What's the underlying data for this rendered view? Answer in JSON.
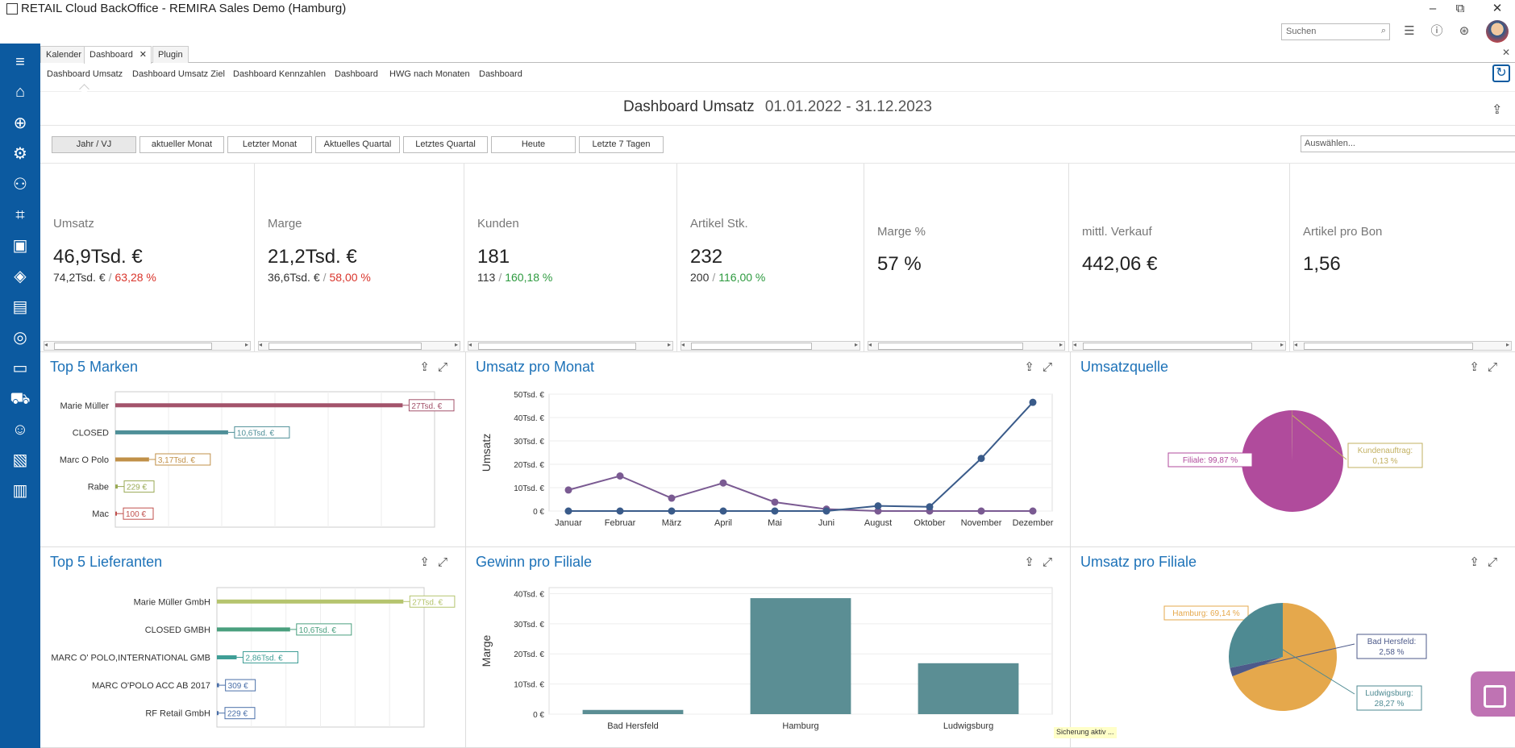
{
  "window": {
    "title": "RETAIL Cloud BackOffice - REMIRA Sales Demo (Hamburg)",
    "minimize": "–",
    "maximize": "⧉",
    "close": "✕"
  },
  "toolbar": {
    "search_placeholder": "Suchen"
  },
  "doc_tabs": [
    {
      "label": "Kalender"
    },
    {
      "label": "Dashboard",
      "active": true,
      "closable": true
    },
    {
      "label": "Plugin"
    }
  ],
  "sub_tabs": [
    {
      "label": "Dashboard Umsatz",
      "active": true
    },
    {
      "label": "Dashboard Umsatz Ziel"
    },
    {
      "label": "Dashboard Kennzahlen"
    },
    {
      "label": "Dashboard"
    },
    {
      "label": "HWG nach Monaten"
    },
    {
      "label": "Dashboard"
    }
  ],
  "dashboard": {
    "title": "Dashboard Umsatz",
    "range": "01.01.2022 - 31.12.2023"
  },
  "filters": {
    "buttons": [
      "Jahr / VJ",
      "aktueller Monat",
      "Letzter Monat",
      "Aktuelles Quartal",
      "Letztes Quartal",
      "Heute",
      "Letzte 7 Tagen"
    ],
    "active_index": 0,
    "select_placeholder": "Auswählen..."
  },
  "kpis": [
    {
      "label": "Umsatz",
      "value": "46,9Tsd. €",
      "prev": "74,2Tsd. €",
      "pct": "63,28 %",
      "pct_color": "red"
    },
    {
      "label": "Marge",
      "value": "21,2Tsd. €",
      "prev": "36,6Tsd. €",
      "pct": "58,00 %",
      "pct_color": "red"
    },
    {
      "label": "Kunden",
      "value": "181",
      "prev": "113",
      "pct": "160,18 %",
      "pct_color": "green"
    },
    {
      "label": "Artikel Stk.",
      "value": "232",
      "prev": "200",
      "pct": "116,00 %",
      "pct_color": "green"
    },
    {
      "label": "Marge %",
      "value": "57 %"
    },
    {
      "label": "mittl. Verkauf",
      "value": "442,06 €"
    },
    {
      "label": "Artikel pro Bon",
      "value": "1,56"
    }
  ],
  "panels": {
    "top5_marken": "Top 5 Marken",
    "umsatz_pro_monat": "Umsatz pro Monat",
    "umsatzquelle": "Umsatzquelle",
    "top5_lieferanten": "Top 5 Lieferanten",
    "gewinn_pro_filiale": "Gewinn pro Filiale",
    "umsatz_pro_filiale": "Umsatz pro Filiale"
  },
  "status": {
    "backup": "Sicherung aktiv ..."
  },
  "colors": {
    "sidebar": "#0c5aa0",
    "accent": "#1d72b8",
    "kpi_red": "#d9342b",
    "kpi_green": "#2d9a3f"
  },
  "chart_data": [
    {
      "id": "top5_marken",
      "type": "bar",
      "orientation": "horizontal",
      "categories": [
        "Marie Müller",
        "CLOSED",
        "Marc O Polo",
        "Rabe",
        "Mac"
      ],
      "values": [
        27000,
        10600,
        3170,
        229,
        100
      ],
      "labels": [
        "27Tsd. €",
        "10,6Tsd. €",
        "3,17Tsd. €",
        "229 €",
        "100 €"
      ],
      "colors": [
        "#a3536b",
        "#4f8f98",
        "#c09048",
        "#9aaa55",
        "#c0504d"
      ],
      "xlim": [
        0,
        30000
      ]
    },
    {
      "id": "umsatz_pro_monat",
      "type": "line",
      "x": [
        "Januar",
        "Februar",
        "März",
        "April",
        "Mai",
        "Juni",
        "August",
        "Oktober",
        "November",
        "Dezember"
      ],
      "ylabel": "Umsatz",
      "yticks": [
        "0 €",
        "10Tsd. €",
        "20Tsd. €",
        "30Tsd. €",
        "40Tsd. €",
        "50Tsd. €"
      ],
      "ylim": [
        0,
        50000
      ],
      "series": [
        {
          "color": "#7a5a92",
          "values": [
            9000,
            15000,
            5500,
            12000,
            3800,
            800,
            0,
            0,
            0,
            0
          ]
        },
        {
          "color": "#3a5b8a",
          "values": [
            0,
            0,
            0,
            0,
            0,
            0,
            2200,
            1800,
            22500,
            46500
          ]
        }
      ]
    },
    {
      "id": "umsatzquelle",
      "type": "pie",
      "slices": [
        {
          "label": "Filiale: 99,87 %",
          "value": 99.87,
          "color": "#b04b9c"
        },
        {
          "label": "Kundenauftrag: 0,13 %",
          "value": 0.13,
          "color": "#c2b060"
        }
      ]
    },
    {
      "id": "top5_lieferanten",
      "type": "bar",
      "orientation": "horizontal",
      "categories": [
        "Marie Müller GmbH",
        "CLOSED GMBH",
        "MARC O' POLO,INTERNATIONAL GMB",
        "MARC O'POLO ACC AB 2017",
        "RF Retail GmbH"
      ],
      "values": [
        27000,
        10600,
        2860,
        309,
        229
      ],
      "labels": [
        "27Tsd. €",
        "10,6Tsd. €",
        "2,86Tsd. €",
        "309 €",
        "229 €"
      ],
      "colors": [
        "#b5c46e",
        "#4a9f7e",
        "#3f9e96",
        "#4a6fa8",
        "#4a6fa8"
      ],
      "xlim": [
        0,
        30000
      ]
    },
    {
      "id": "gewinn_pro_filiale",
      "type": "bar",
      "categories": [
        "Bad Hersfeld",
        "Hamburg",
        "Ludwigsburg"
      ],
      "values": [
        1400,
        38500,
        16900
      ],
      "ylabel": "Marge",
      "yticks": [
        "0 €",
        "10Tsd. €",
        "20Tsd. €",
        "30Tsd. €",
        "40Tsd. €"
      ],
      "ylim": [
        0,
        42000
      ],
      "color": "#5b8e94"
    },
    {
      "id": "umsatz_pro_filiale",
      "type": "pie",
      "slices": [
        {
          "label": "Hamburg: 69,14 %",
          "value": 69.14,
          "color": "#e5a84c"
        },
        {
          "label": "Bad Hersfeld: 2,58 %",
          "value": 2.58,
          "color": "#4d5a8a"
        },
        {
          "label": "Ludwigsburg: 28,27 %",
          "value": 28.27,
          "color": "#4e8a92"
        }
      ]
    }
  ]
}
